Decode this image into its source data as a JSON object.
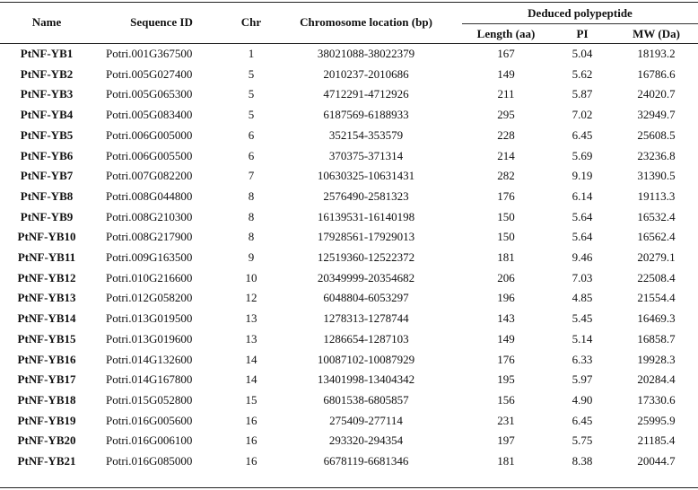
{
  "headers": {
    "name": "Name",
    "seq_id": "Sequence ID",
    "chr": "Chr",
    "location": "Chromosome location  (bp)",
    "group": "Deduced polypeptide",
    "length": "Length (aa)",
    "pi": "PI",
    "mw": "MW (Da)"
  },
  "rows": [
    {
      "name": "PtNF-YB1",
      "seq": "Potri.001G367500",
      "chr": "1",
      "loc": "38021088-38022379",
      "len": "167",
      "pi": "5.04",
      "mw": "18193.2"
    },
    {
      "name": "PtNF-YB2",
      "seq": "Potri.005G027400",
      "chr": "5",
      "loc": "2010237-2010686",
      "len": "149",
      "pi": "5.62",
      "mw": "16786.6"
    },
    {
      "name": "PtNF-YB3",
      "seq": "Potri.005G065300",
      "chr": "5",
      "loc": "4712291-4712926",
      "len": "211",
      "pi": "5.87",
      "mw": "24020.7"
    },
    {
      "name": "PtNF-YB4",
      "seq": "Potri.005G083400",
      "chr": "5",
      "loc": "6187569-6188933",
      "len": "295",
      "pi": "7.02",
      "mw": "32949.7"
    },
    {
      "name": "PtNF-YB5",
      "seq": "Potri.006G005000",
      "chr": "6",
      "loc": "352154-353579",
      "len": "228",
      "pi": "6.45",
      "mw": "25608.5"
    },
    {
      "name": "PtNF-YB6",
      "seq": "Potri.006G005500",
      "chr": "6",
      "loc": "370375-371314",
      "len": "214",
      "pi": "5.69",
      "mw": "23236.8"
    },
    {
      "name": "PtNF-YB7",
      "seq": "Potri.007G082200",
      "chr": "7",
      "loc": "10630325-10631431",
      "len": "282",
      "pi": "9.19",
      "mw": "31390.5"
    },
    {
      "name": "PtNF-YB8",
      "seq": "Potri.008G044800",
      "chr": "8",
      "loc": "2576490-2581323",
      "len": "176",
      "pi": "6.14",
      "mw": "19113.3"
    },
    {
      "name": "PtNF-YB9",
      "seq": "Potri.008G210300",
      "chr": "8",
      "loc": "16139531-16140198",
      "len": "150",
      "pi": "5.64",
      "mw": "16532.4"
    },
    {
      "name": "PtNF-YB10",
      "seq": "Potri.008G217900",
      "chr": "8",
      "loc": "17928561-17929013",
      "len": "150",
      "pi": "5.64",
      "mw": "16562.4"
    },
    {
      "name": "PtNF-YB11",
      "seq": "Potri.009G163500",
      "chr": "9",
      "loc": "12519360-12522372",
      "len": "181",
      "pi": "9.46",
      "mw": "20279.1"
    },
    {
      "name": "PtNF-YB12",
      "seq": "Potri.010G216600",
      "chr": "10",
      "loc": "20349999-20354682",
      "len": "206",
      "pi": "7.03",
      "mw": "22508.4"
    },
    {
      "name": "PtNF-YB13",
      "seq": "Potri.012G058200",
      "chr": "12",
      "loc": "6048804-6053297",
      "len": "196",
      "pi": "4.85",
      "mw": "21554.4"
    },
    {
      "name": "PtNF-YB14",
      "seq": "Potri.013G019500",
      "chr": "13",
      "loc": "1278313-1278744",
      "len": "143",
      "pi": "5.45",
      "mw": "16469.3"
    },
    {
      "name": "PtNF-YB15",
      "seq": "Potri.013G019600",
      "chr": "13",
      "loc": "1286654-1287103",
      "len": "149",
      "pi": "5.14",
      "mw": "16858.7"
    },
    {
      "name": "PtNF-YB16",
      "seq": "Potri.014G132600",
      "chr": "14",
      "loc": "10087102-10087929",
      "len": "176",
      "pi": "6.33",
      "mw": "19928.3"
    },
    {
      "name": "PtNF-YB17",
      "seq": "Potri.014G167800",
      "chr": "14",
      "loc": "13401998-13404342",
      "len": "195",
      "pi": "5.97",
      "mw": "20284.4"
    },
    {
      "name": "PtNF-YB18",
      "seq": "Potri.015G052800",
      "chr": "15",
      "loc": "6801538-6805857",
      "len": "156",
      "pi": "4.90",
      "mw": "17330.6"
    },
    {
      "name": "PtNF-YB19",
      "seq": "Potri.016G005600",
      "chr": "16",
      "loc": "275409-277114",
      "len": "231",
      "pi": "6.45",
      "mw": "25995.9"
    },
    {
      "name": "PtNF-YB20",
      "seq": "Potri.016G006100",
      "chr": "16",
      "loc": "293320-294354",
      "len": "197",
      "pi": "5.75",
      "mw": "21185.4"
    },
    {
      "name": "PtNF-YB21",
      "seq": "Potri.016G085000",
      "chr": "16",
      "loc": "6678119-6681346",
      "len": "181",
      "pi": "8.38",
      "mw": "20044.7"
    }
  ]
}
